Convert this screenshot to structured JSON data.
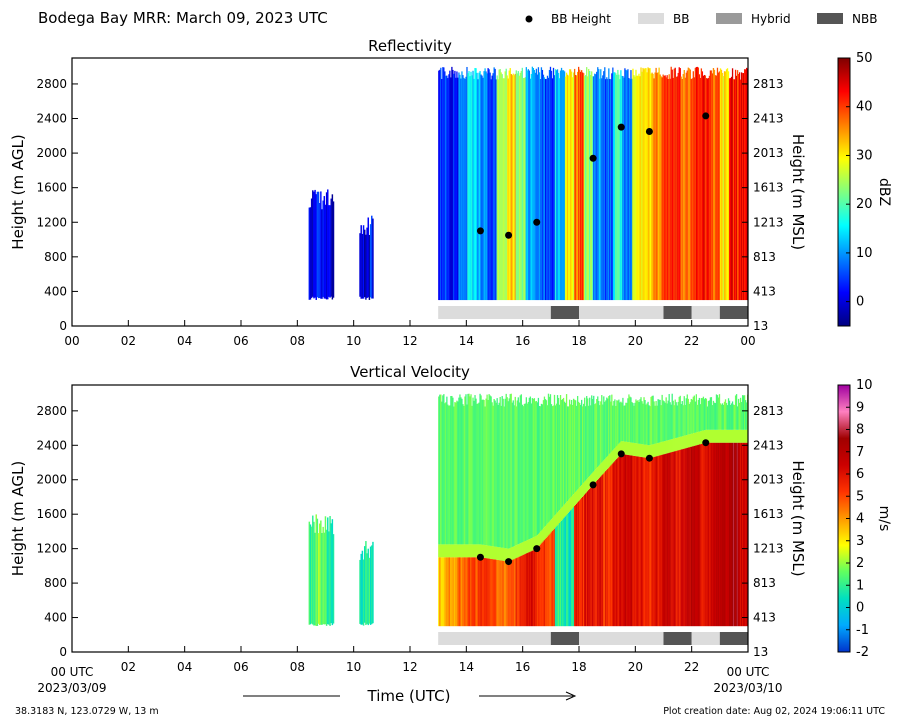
{
  "header": {
    "title": "Bodega Bay MRR:  March 09, 2023 UTC",
    "legend": [
      {
        "label": "BB Height",
        "kind": "dot",
        "color": "#000000"
      },
      {
        "label": "BB",
        "kind": "swatch",
        "color": "#dcdcdc"
      },
      {
        "label": "Hybrid",
        "kind": "swatch",
        "color": "#9a9a9a"
      },
      {
        "label": "NBB",
        "kind": "swatch",
        "color": "#555555"
      }
    ]
  },
  "footer": {
    "location": "38.3183 N, 123.0729 W, 13 m",
    "creation": "Plot creation date: Aug 02, 2024 19:06:11 UTC",
    "xlabel": "Time (UTC)",
    "start_tick": "00 UTC",
    "start_date": "2023/03/09",
    "end_tick": "00 UTC",
    "end_date": "2023/03/10"
  },
  "chart_data": [
    {
      "type": "heatmap",
      "title": "Reflectivity",
      "ylabel": "Height (m AGL)",
      "ylabel_right": "Height (m MSL)",
      "colorbar_label": "dBZ",
      "xlim": [
        0,
        24
      ],
      "ylim": [
        0,
        3100
      ],
      "x_ticks": [
        "00",
        "02",
        "04",
        "06",
        "08",
        "10",
        "12",
        "14",
        "16",
        "18",
        "20",
        "22",
        "00"
      ],
      "y_ticks": [
        0,
        400,
        800,
        1200,
        1600,
        2000,
        2400,
        2800
      ],
      "y_ticks_right": [
        "13",
        "413",
        "813",
        "1213",
        "1613",
        "2013",
        "2413",
        "2813"
      ],
      "y_ticks_right_values": [
        0,
        400,
        800,
        1200,
        1600,
        2000,
        2400,
        2800
      ],
      "colorbar": {
        "min": -5,
        "max": 50,
        "ticks": [
          0,
          10,
          20,
          30,
          40,
          50
        ],
        "stops": [
          "#00007f",
          "#0000ff",
          "#0080ff",
          "#00ffff",
          "#80ff80",
          "#ffff00",
          "#ff8000",
          "#ff0000",
          "#7f0000"
        ]
      },
      "bb_height": {
        "x": [
          14.5,
          15.5,
          16.5,
          18.5,
          19.5,
          20.5,
          22.5
        ],
        "y": [
          1100,
          1050,
          1200,
          1940,
          2300,
          2250,
          2430
        ]
      },
      "bb_type": [
        {
          "start": 13.0,
          "end": 17.0,
          "type": "BB"
        },
        {
          "start": 17.0,
          "end": 18.0,
          "type": "NBB"
        },
        {
          "start": 18.0,
          "end": 21.0,
          "type": "BB"
        },
        {
          "start": 21.0,
          "end": 22.0,
          "type": "NBB"
        },
        {
          "start": 22.0,
          "end": 23.0,
          "type": "BB"
        },
        {
          "start": 23.0,
          "end": 24.0,
          "type": "NBB"
        }
      ],
      "echo_regions": [
        {
          "x0": 8.4,
          "x1": 9.3,
          "y0": 300,
          "y1": 1600,
          "values": [
            0,
            3,
            6,
            3,
            0,
            -2
          ]
        },
        {
          "x0": 10.2,
          "x1": 10.7,
          "y0": 300,
          "y1": 1300,
          "values": [
            2,
            0,
            -1,
            3
          ]
        },
        {
          "x0": 13.0,
          "x1": 24.0,
          "y0": 300,
          "y1": 3000,
          "values": [
            5,
            3,
            8,
            15,
            10,
            6,
            25,
            32,
            24,
            12,
            8,
            4,
            14,
            30,
            38,
            22,
            10,
            6,
            18,
            8,
            28,
            33,
            36,
            40,
            42,
            38,
            41,
            43,
            38,
            30,
            42,
            44
          ]
        }
      ]
    },
    {
      "type": "heatmap",
      "title": "Vertical Velocity",
      "ylabel": "Height (m AGL)",
      "ylabel_right": "Height (m MSL)",
      "colorbar_label": "m/s",
      "xlim": [
        0,
        24
      ],
      "ylim": [
        0,
        3100
      ],
      "x_ticks": [
        "00",
        "02",
        "04",
        "06",
        "08",
        "10",
        "12",
        "14",
        "16",
        "18",
        "20",
        "22",
        "00"
      ],
      "y_ticks": [
        0,
        400,
        800,
        1200,
        1600,
        2000,
        2400,
        2800
      ],
      "y_ticks_right": [
        "13",
        "413",
        "813",
        "1213",
        "1613",
        "2013",
        "2413",
        "2813"
      ],
      "y_ticks_right_values": [
        0,
        400,
        800,
        1200,
        1600,
        2000,
        2400,
        2800
      ],
      "colorbar": {
        "min": -2,
        "max": 10,
        "ticks": [
          -2,
          -1,
          0,
          1,
          2,
          3,
          4,
          5,
          6,
          7,
          8,
          9,
          10
        ],
        "stops": [
          "#0033cc",
          "#00aaff",
          "#00e0c0",
          "#60ff60",
          "#ffff00",
          "#ff9900",
          "#ff3300",
          "#cc0000",
          "#a00000",
          "#ff80c0",
          "#a000a0"
        ]
      },
      "bb_height": {
        "x": [
          14.5,
          15.5,
          16.5,
          18.5,
          19.5,
          20.5,
          22.5
        ],
        "y": [
          1100,
          1050,
          1200,
          1940,
          2300,
          2250,
          2430
        ]
      },
      "bb_type": [
        {
          "start": 13.0,
          "end": 17.0,
          "type": "BB"
        },
        {
          "start": 17.0,
          "end": 18.0,
          "type": "NBB"
        },
        {
          "start": 18.0,
          "end": 21.0,
          "type": "BB"
        },
        {
          "start": 21.0,
          "end": 22.0,
          "type": "NBB"
        },
        {
          "start": 22.0,
          "end": 23.0,
          "type": "BB"
        },
        {
          "start": 23.0,
          "end": 24.0,
          "type": "NBB"
        }
      ],
      "echo_regions": [
        {
          "x0": 8.4,
          "x1": 9.3,
          "y0": 300,
          "y1": 1600,
          "values": [
            1.0,
            1.5,
            2.0,
            1.5,
            1.0,
            0.5
          ]
        },
        {
          "x0": 10.2,
          "x1": 10.7,
          "y0": 300,
          "y1": 1300,
          "values": [
            0.5,
            1.0,
            1.0,
            0.5
          ]
        },
        {
          "x0": 13.0,
          "x1": 24.0,
          "y0": 300,
          "y1": 3000,
          "values_below_bb": [
            3.5,
            4.0,
            4.5,
            5.0,
            5.5,
            5.0,
            4.5,
            5.0,
            5.5,
            6.0,
            5.5,
            5.0,
            1.0,
            0.5,
            5.5,
            6.0,
            6.0,
            5.5,
            6.0,
            6.5,
            6.0,
            5.5,
            6.0,
            6.5,
            6.0,
            6.5,
            7.0,
            6.0,
            6.5,
            7.0,
            7.5,
            6.5
          ],
          "values_above_bb": [
            1.5
          ]
        }
      ]
    }
  ]
}
